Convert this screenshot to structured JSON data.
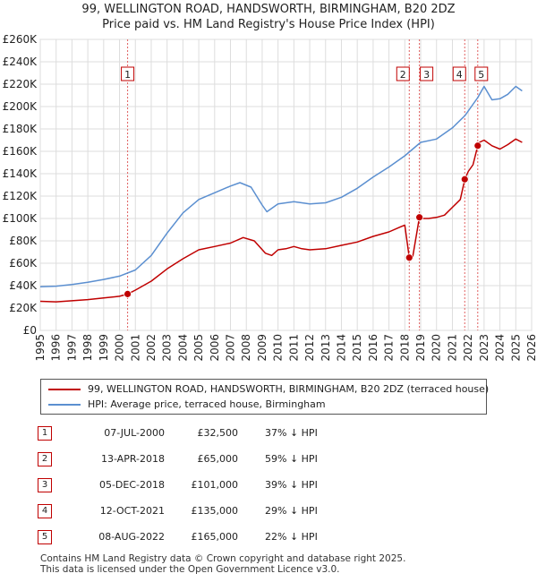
{
  "title": {
    "line1": "99, WELLINGTON ROAD, HANDSWORTH, BIRMINGHAM, B20 2DZ",
    "line2": "Price paid vs. HM Land Registry's House Price Index (HPI)"
  },
  "chart_data": {
    "type": "line",
    "ylim": [
      0,
      260000
    ],
    "xlim": [
      1995,
      2026
    ],
    "y_ticks": [
      {
        "value": 0,
        "label": "£0"
      },
      {
        "value": 20000,
        "label": "£20K"
      },
      {
        "value": 40000,
        "label": "£40K"
      },
      {
        "value": 60000,
        "label": "£60K"
      },
      {
        "value": 80000,
        "label": "£80K"
      },
      {
        "value": 100000,
        "label": "£100K"
      },
      {
        "value": 120000,
        "label": "£120K"
      },
      {
        "value": 140000,
        "label": "£140K"
      },
      {
        "value": 160000,
        "label": "£160K"
      },
      {
        "value": 180000,
        "label": "£180K"
      },
      {
        "value": 200000,
        "label": "£200K"
      },
      {
        "value": 220000,
        "label": "£220K"
      },
      {
        "value": 240000,
        "label": "£240K"
      },
      {
        "value": 260000,
        "label": "£260K"
      }
    ],
    "x_ticks": [
      "1995",
      "1996",
      "1997",
      "1998",
      "1999",
      "2000",
      "2001",
      "2002",
      "2003",
      "2004",
      "2005",
      "2006",
      "2007",
      "2008",
      "2009",
      "2010",
      "2011",
      "2012",
      "2013",
      "2014",
      "2015",
      "2016",
      "2017",
      "2018",
      "2019",
      "2020",
      "2021",
      "2022",
      "2023",
      "2024",
      "2025",
      "2026"
    ],
    "series": [
      {
        "name": "99, WELLINGTON ROAD, HANDSWORTH, BIRMINGHAM, B20 2DZ (terraced house)",
        "color": "#c00000",
        "x": [
          1995.0,
          1996.0,
          1997.0,
          1998.0,
          1999.0,
          2000.0,
          2000.51,
          2001.0,
          2002.0,
          2003.0,
          2004.0,
          2005.0,
          2006.0,
          2007.0,
          2007.8,
          2008.5,
          2009.2,
          2009.6,
          2010.0,
          2010.5,
          2011.0,
          2011.5,
          2012.0,
          2013.0,
          2014.0,
          2015.0,
          2016.0,
          2017.0,
          2017.8,
          2018.0,
          2018.28,
          2018.5,
          2018.92,
          2019.0,
          2019.5,
          2020.0,
          2020.5,
          2021.0,
          2021.5,
          2021.78,
          2022.0,
          2022.3,
          2022.6,
          2022.7,
          2023.0,
          2023.5,
          2024.0,
          2024.5,
          2025.0,
          2025.4
        ],
        "values": [
          26000,
          25500,
          26500,
          27500,
          29000,
          30500,
          32500,
          36000,
          44000,
          55000,
          64000,
          72000,
          75000,
          78000,
          83000,
          80000,
          69000,
          67000,
          72000,
          73000,
          75000,
          73000,
          72000,
          73000,
          76000,
          79000,
          84000,
          88000,
          93000,
          94000,
          65000,
          66000,
          101000,
          100000,
          100000,
          101000,
          103000,
          110000,
          117000,
          135000,
          142000,
          148000,
          165000,
          168000,
          170000,
          165000,
          162000,
          166000,
          171000,
          168000
        ]
      },
      {
        "name": "HPI: Average price, terraced house, Birmingham",
        "color": "#5b8fd0",
        "x": [
          1995.0,
          1996.0,
          1997.0,
          1998.0,
          1999.0,
          2000.0,
          2001.0,
          2002.0,
          2003.0,
          2004.0,
          2005.0,
          2006.0,
          2007.0,
          2007.6,
          2008.3,
          2009.0,
          2009.3,
          2010.0,
          2011.0,
          2012.0,
          2013.0,
          2014.0,
          2015.0,
          2016.0,
          2017.0,
          2018.0,
          2019.0,
          2020.0,
          2021.0,
          2021.8,
          2022.2,
          2022.6,
          2023.0,
          2023.5,
          2024.0,
          2024.5,
          2025.0,
          2025.4
        ],
        "values": [
          39000,
          39500,
          41000,
          43000,
          45500,
          48500,
          54000,
          67000,
          87000,
          105000,
          117000,
          123000,
          129000,
          132000,
          128000,
          112000,
          106000,
          113000,
          115000,
          113000,
          114000,
          119000,
          127000,
          137000,
          146000,
          156000,
          168000,
          171000,
          181000,
          192000,
          200000,
          208000,
          218000,
          206000,
          207000,
          211000,
          218000,
          214000
        ]
      }
    ],
    "sales_markers": [
      {
        "label": "1",
        "x": 2000.51,
        "value": 32500
      },
      {
        "label": "2",
        "x": 2018.28,
        "value": 65000
      },
      {
        "label": "3",
        "x": 2018.92,
        "value": 101000
      },
      {
        "label": "4",
        "x": 2021.78,
        "value": 135000
      },
      {
        "label": "5",
        "x": 2022.6,
        "value": 165000
      }
    ]
  },
  "legend": {
    "property": "99, WELLINGTON ROAD, HANDSWORTH, BIRMINGHAM, B20 2DZ (terraced house)",
    "hpi": "HPI: Average price, terraced house, Birmingham"
  },
  "sales": [
    {
      "num": "1",
      "date": "07-JUL-2000",
      "price": "£32,500",
      "hpi": "37% ↓ HPI"
    },
    {
      "num": "2",
      "date": "13-APR-2018",
      "price": "£65,000",
      "hpi": "59% ↓ HPI"
    },
    {
      "num": "3",
      "date": "05-DEC-2018",
      "price": "£101,000",
      "hpi": "39% ↓ HPI"
    },
    {
      "num": "4",
      "date": "12-OCT-2021",
      "price": "£135,000",
      "hpi": "29% ↓ HPI"
    },
    {
      "num": "5",
      "date": "08-AUG-2022",
      "price": "£165,000",
      "hpi": "22% ↓ HPI"
    }
  ],
  "footer": {
    "line1": "Contains HM Land Registry data © Crown copyright and database right 2025.",
    "line2": "This data is licensed under the Open Government Licence v3.0."
  },
  "colors": {
    "property": "#c00000",
    "hpi": "#5b8fd0",
    "grid": "#dddddd"
  }
}
